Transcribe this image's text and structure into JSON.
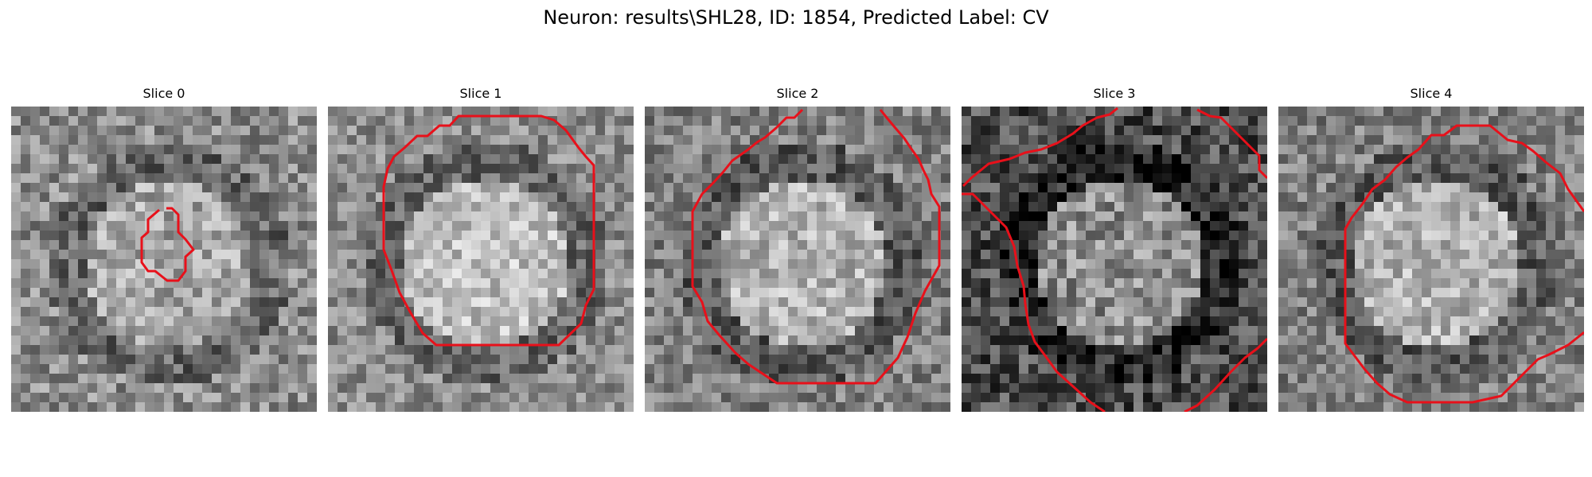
{
  "figure": {
    "title": "Neuron: results\\SHL28, ID: 1854, Predicted Label: CV"
  },
  "panels": [
    {
      "title": "Slice 0",
      "seed": 11,
      "brightness": 0.55,
      "contrast": 0.9,
      "nucleus_shade": 0.65,
      "outline": "small cell contour"
    },
    {
      "title": "Slice 1",
      "seed": 23,
      "brightness": 0.55,
      "contrast": 0.8,
      "nucleus_shade": 0.75,
      "outline": "large cell contour"
    },
    {
      "title": "Slice 2",
      "seed": 37,
      "brightness": 0.5,
      "contrast": 0.85,
      "nucleus_shade": 0.7,
      "outline": "large cell contour"
    },
    {
      "title": "Slice 3",
      "seed": 41,
      "brightness": 0.3,
      "contrast": 1.0,
      "nucleus_shade": 0.55,
      "outline": "partial contours"
    },
    {
      "title": "Slice 4",
      "seed": 53,
      "brightness": 0.5,
      "contrast": 0.85,
      "nucleus_shade": 0.7,
      "outline": "large cell contour"
    }
  ],
  "colors": {
    "contour": "#e8101a",
    "background": "#ffffff"
  }
}
